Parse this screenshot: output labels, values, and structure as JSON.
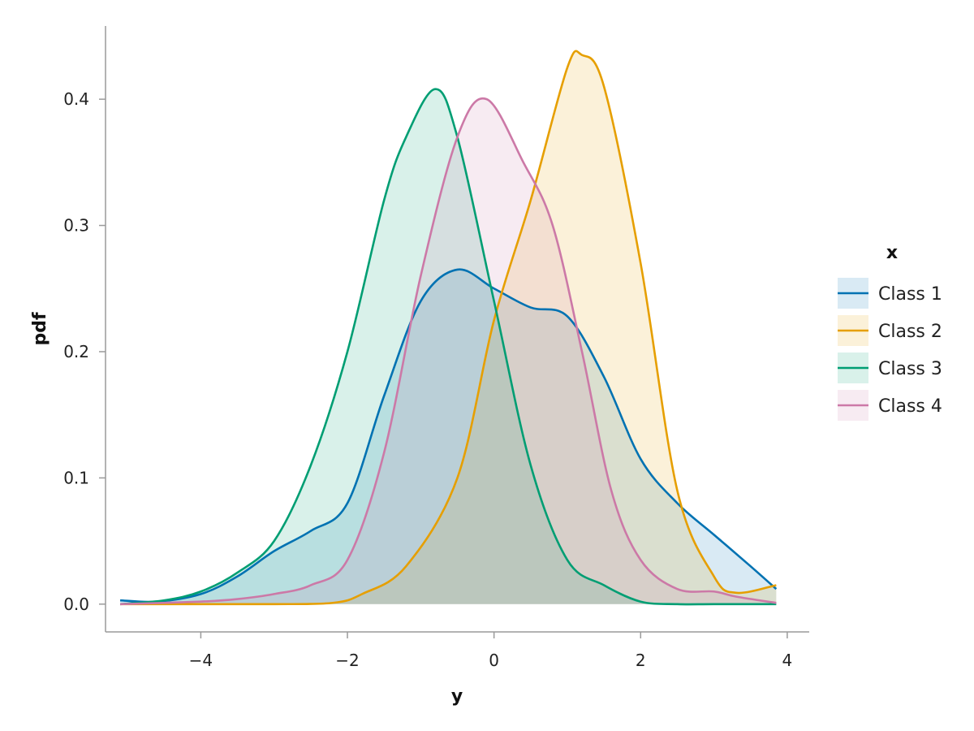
{
  "chart_data": {
    "type": "area",
    "xlabel": "y",
    "ylabel": "pdf",
    "xlim": [
      -5.3,
      4.3
    ],
    "ylim": [
      -0.022,
      0.458
    ],
    "xticks": [
      -4,
      -2,
      0,
      2,
      4
    ],
    "yticks": [
      0.0,
      0.1,
      0.2,
      0.3,
      0.4
    ],
    "xtick_labels": [
      "−4",
      "−2",
      "0",
      "2",
      "4"
    ],
    "ytick_labels": [
      "0.0",
      "0.1",
      "0.2",
      "0.3",
      "0.4"
    ],
    "grid": false,
    "legend": {
      "title": "x",
      "position": "right"
    },
    "series": [
      {
        "name": "Class 1",
        "color": "#0072B2",
        "x": [
          -5.1,
          -4.6,
          -4.0,
          -3.5,
          -3.0,
          -2.5,
          -2.0,
          -1.5,
          -1.0,
          -0.5,
          0.0,
          0.5,
          1.0,
          1.5,
          2.0,
          2.5,
          3.0,
          3.5,
          3.85
        ],
        "y": [
          0.003,
          0.002,
          0.008,
          0.022,
          0.042,
          0.058,
          0.08,
          0.165,
          0.24,
          0.265,
          0.25,
          0.235,
          0.228,
          0.18,
          0.115,
          0.08,
          0.055,
          0.03,
          0.012
        ]
      },
      {
        "name": "Class 2",
        "color": "#E69F00",
        "x": [
          -5.1,
          -4.0,
          -3.0,
          -2.2,
          -1.8,
          -1.2,
          -0.5,
          0.0,
          0.5,
          1.0,
          1.2,
          1.5,
          2.0,
          2.5,
          3.0,
          3.3,
          3.85
        ],
        "y": [
          0.0,
          0.0,
          0.0,
          0.001,
          0.008,
          0.03,
          0.1,
          0.225,
          0.32,
          0.425,
          0.435,
          0.41,
          0.27,
          0.09,
          0.022,
          0.009,
          0.015
        ]
      },
      {
        "name": "Class 3",
        "color": "#009E73",
        "x": [
          -5.1,
          -4.5,
          -4.0,
          -3.5,
          -3.0,
          -2.5,
          -2.0,
          -1.5,
          -1.2,
          -0.8,
          -0.5,
          0.0,
          0.5,
          1.0,
          1.5,
          2.0,
          2.5,
          3.0,
          3.85
        ],
        "y": [
          0.0,
          0.003,
          0.01,
          0.025,
          0.05,
          0.11,
          0.2,
          0.32,
          0.37,
          0.408,
          0.37,
          0.24,
          0.11,
          0.035,
          0.015,
          0.002,
          0.0,
          0.0,
          0.0
        ]
      },
      {
        "name": "Class 4",
        "color": "#CC79A7",
        "x": [
          -5.1,
          -4.0,
          -3.5,
          -3.0,
          -2.5,
          -2.0,
          -1.5,
          -1.0,
          -0.5,
          -0.1,
          0.4,
          0.8,
          1.2,
          1.6,
          2.0,
          2.5,
          3.0,
          3.3,
          3.85
        ],
        "y": [
          0.0,
          0.002,
          0.004,
          0.008,
          0.015,
          0.035,
          0.12,
          0.26,
          0.37,
          0.4,
          0.35,
          0.3,
          0.2,
          0.09,
          0.035,
          0.012,
          0.01,
          0.006,
          0.001
        ]
      }
    ]
  }
}
